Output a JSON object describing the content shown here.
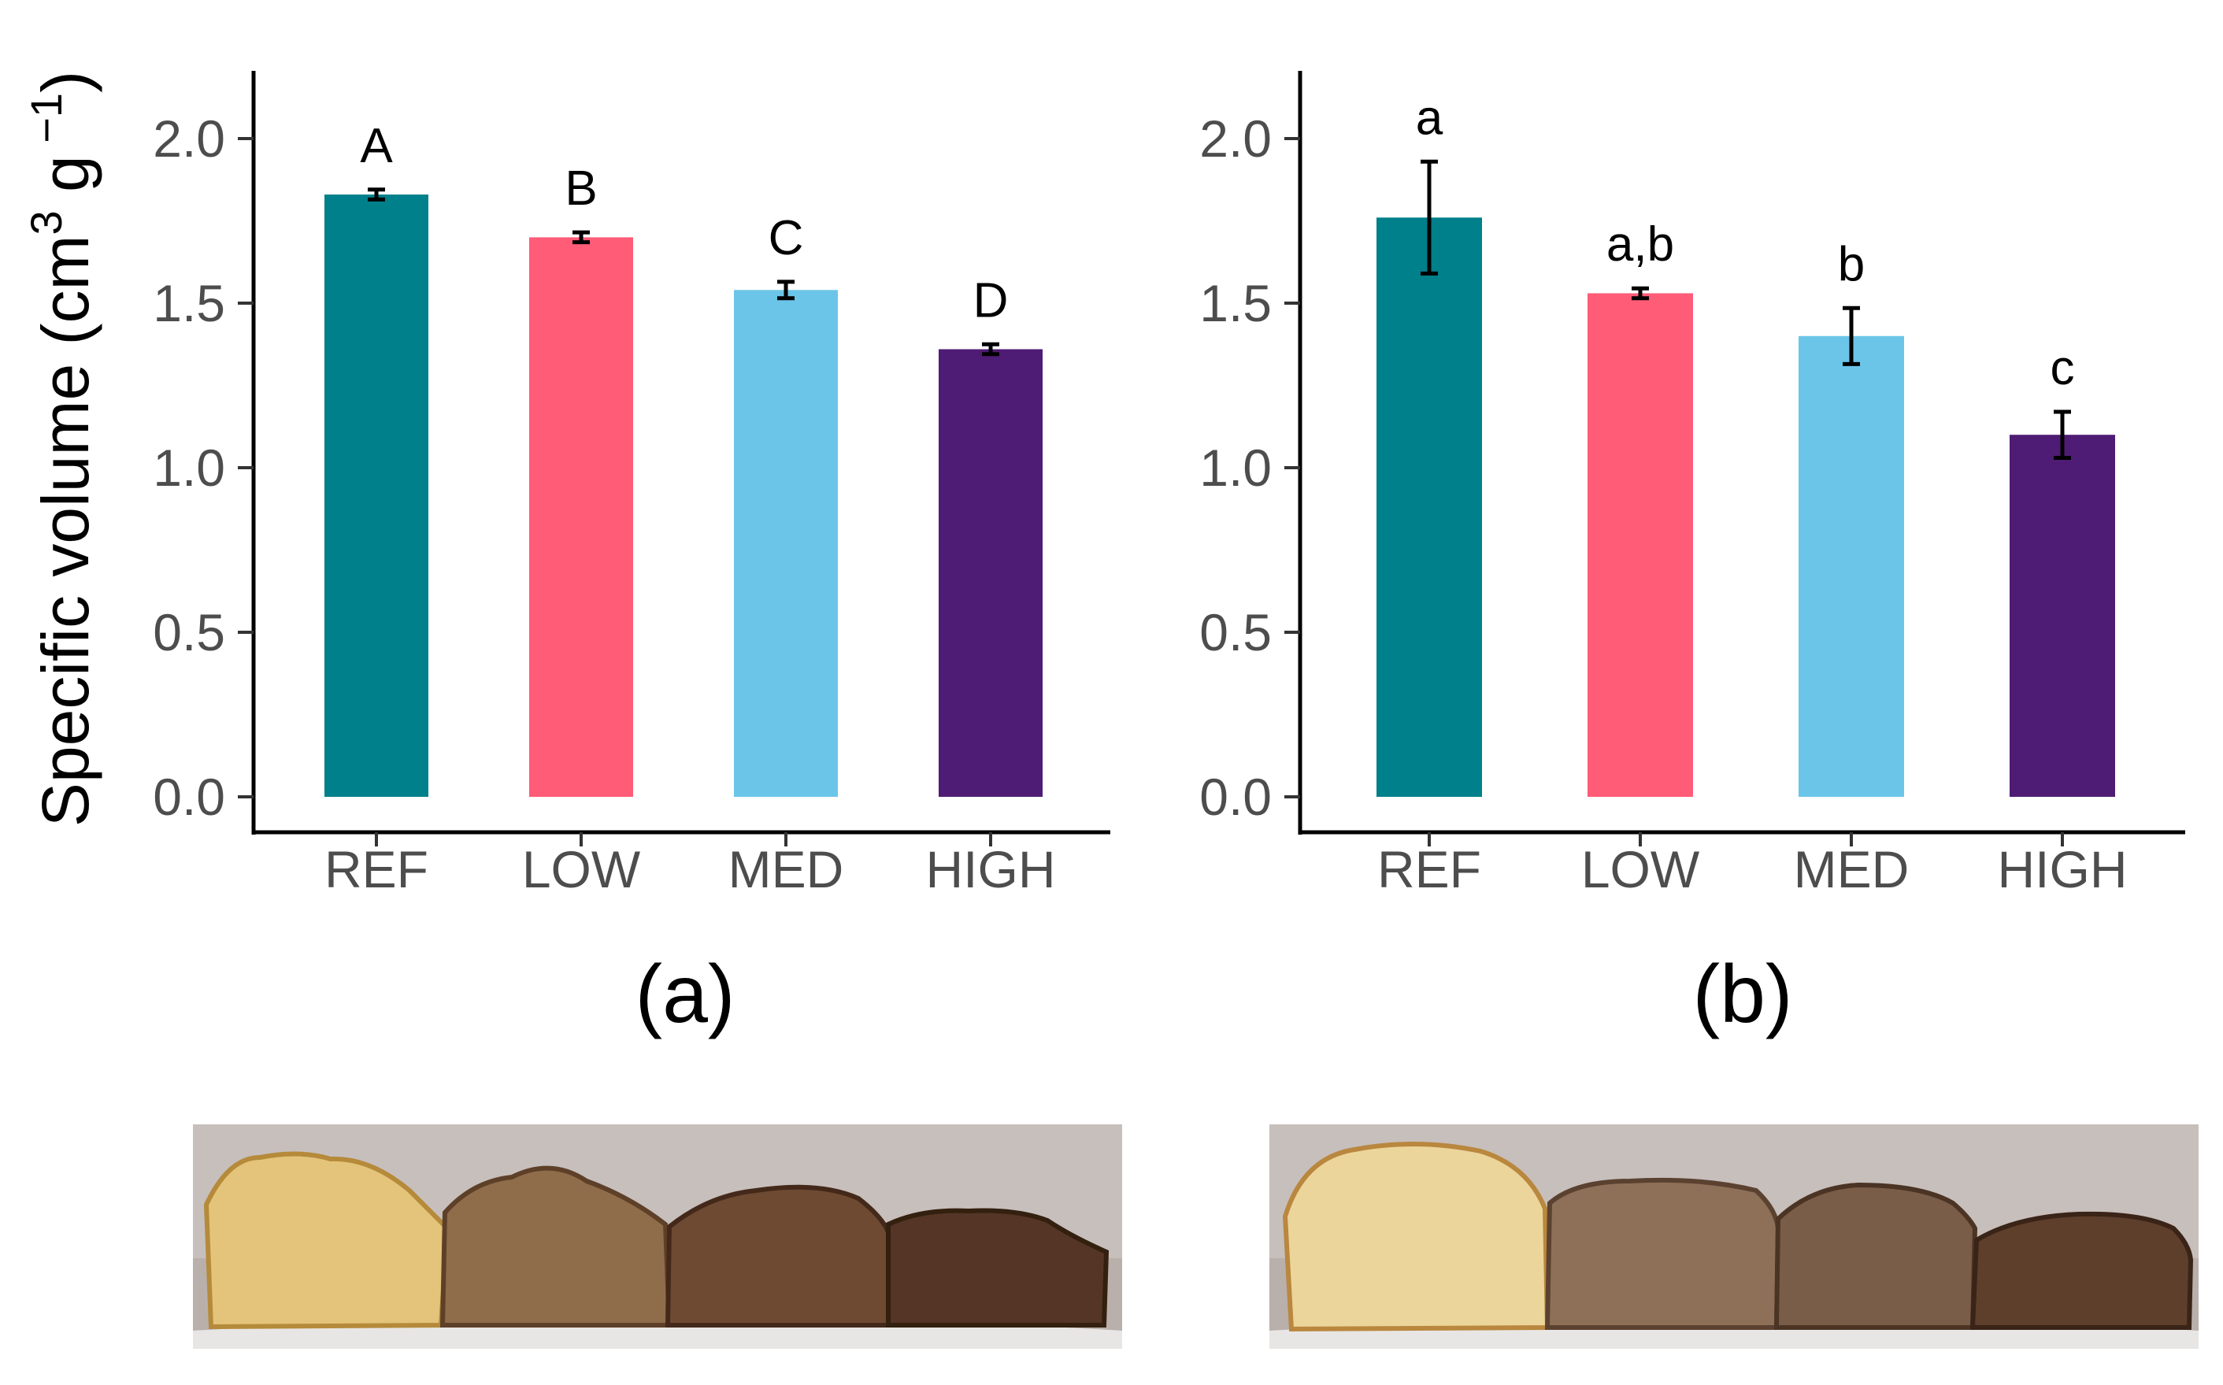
{
  "figure": {
    "ylabel": {
      "main": "Specific volume (cm",
      "sup1": "3",
      "mid": " g",
      "sup2": " −1",
      "end": ")"
    }
  },
  "chart_data": [
    {
      "type": "bar",
      "panel_label": "(a)",
      "categories": [
        "REF",
        "LOW",
        "MED",
        "HIGH"
      ],
      "values": [
        1.83,
        1.7,
        1.54,
        1.36
      ],
      "errors": [
        0.015,
        0.015,
        0.025,
        0.015
      ],
      "letters": [
        "A",
        "B",
        "C",
        "D"
      ],
      "colors": [
        "#00808A",
        "#FF5C77",
        "#6BC5E8",
        "#4E1C74"
      ],
      "ylim": [
        0,
        2.2
      ],
      "yticks": [
        "0.0",
        "0.5",
        "1.0",
        "1.5",
        "2.0"
      ],
      "xlabel": "",
      "ylabel": "Specific volume (cm3 g−1)",
      "photo_caption": ""
    },
    {
      "type": "bar",
      "panel_label": "(b)",
      "categories": [
        "REF",
        "LOW",
        "MED",
        "HIGH"
      ],
      "values": [
        1.76,
        1.53,
        1.4,
        1.1
      ],
      "errors": [
        0.17,
        0.015,
        0.085,
        0.07
      ],
      "letters": [
        "a",
        "a,b",
        "b",
        "c"
      ],
      "colors": [
        "#00808A",
        "#FF5C77",
        "#6BC5E8",
        "#4E1C74"
      ],
      "ylim": [
        0,
        2.2
      ],
      "yticks": [
        "0.0",
        "0.5",
        "1.0",
        "1.5",
        "2.0"
      ],
      "xlabel": "",
      "ylabel": "",
      "photo_caption": ""
    }
  ]
}
